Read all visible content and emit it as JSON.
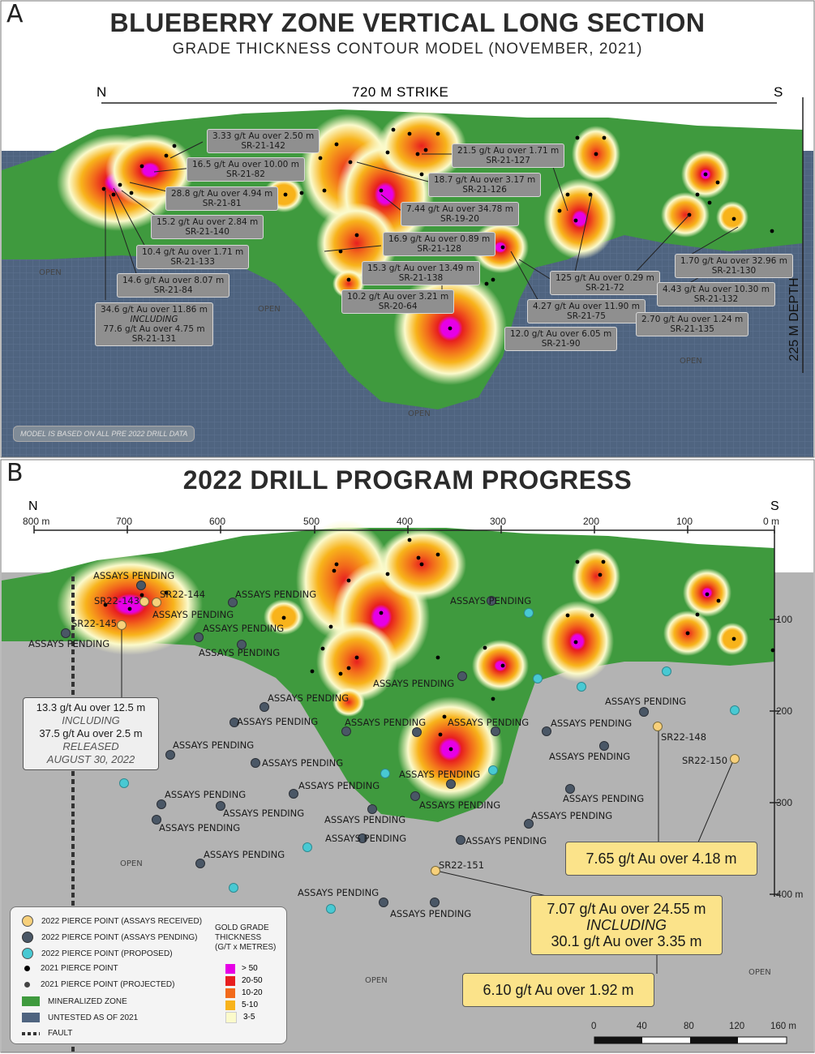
{
  "panelA": {
    "letter": "A",
    "title": "BLUEBERRY ZONE VERTICAL LONG SECTION",
    "subtitle": "GRADE THICKNESS CONTOUR MODEL (NOVEMBER, 2021)",
    "north": "N",
    "south": "S",
    "strike": "720 M STRIKE",
    "depth": "225 M DEPTH",
    "note": "MODEL IS BASED ON ALL PRE 2022 DRILL DATA",
    "open_label": "OPEN",
    "intercepts": [
      {
        "grade": "3.33 g/t Au over 2.50 m",
        "hole": "SR-21-142"
      },
      {
        "grade": "16.5 g/t Au over 10.00 m",
        "hole": "SR-21-82"
      },
      {
        "grade": "28.8 g/t Au over 4.94 m",
        "hole": "SR-21-81"
      },
      {
        "grade": "15.2 g/t Au over 2.84 m",
        "hole": "SR-21-140"
      },
      {
        "grade": "10.4 g/t Au over 1.71 m",
        "hole": "SR-21-133"
      },
      {
        "grade": "14.6 g/t Au over 8.07 m",
        "hole": "SR-21-84"
      },
      {
        "grade": "34.6 g/t Au over 11.86 m",
        "including": "INCLUDING",
        "grade2": "77.6 g/t Au over 4.75 m",
        "hole": "SR-21-131"
      },
      {
        "grade": "21.5 g/t Au over 1.71 m",
        "hole": "SR-21-127"
      },
      {
        "grade": "18.7 g/t Au over 3.17 m",
        "hole": "SR-21-126"
      },
      {
        "grade": "7.44 g/t Au over 34.78 m",
        "hole": "SR-19-20"
      },
      {
        "grade": "16.9 g/t Au over 0.89 m",
        "hole": "SR-21-128"
      },
      {
        "grade": "15.3 g/t Au over 13.49 m",
        "hole": "SR-21-138"
      },
      {
        "grade": "10.2 g/t Au over 3.21 m",
        "hole": "SR-20-64"
      },
      {
        "grade": "125 g/t Au over 0.29 m",
        "hole": "SR-21-72"
      },
      {
        "grade": "4.27 g/t Au over 11.90 m",
        "hole": "SR-21-75"
      },
      {
        "grade": "12.0 g/t Au over 6.05 m",
        "hole": "SR-21-90"
      },
      {
        "grade": "1.70 g/t Au over 32.96 m",
        "hole": "SR-21-130"
      },
      {
        "grade": "4.43 g/t Au over 10.30 m",
        "hole": "SR-21-132"
      },
      {
        "grade": "2.70 g/t Au over 1.24 m",
        "hole": "SR-21-135"
      }
    ]
  },
  "panelB": {
    "letter": "B",
    "title": "2022 DRILL PROGRAM PROGRESS",
    "north": "N",
    "south": "S",
    "x_ticks": [
      "800 m",
      "700",
      "600",
      "500",
      "400",
      "300",
      "200",
      "100",
      "0 m"
    ],
    "y_ticks": [
      "100",
      "200",
      "300",
      "400 m"
    ],
    "pending_text": "ASSAYS PENDING",
    "open_label": "OPEN",
    "holes": {
      "h143": "SR22-143",
      "h144": "SR22-144",
      "h145": "SR22-145",
      "h148": "SR22-148",
      "h150": "SR22-150",
      "h151": "SR22-151"
    },
    "released": {
      "line1": "13.3 g/t Au over 12.5 m",
      "including": "INCLUDING",
      "line2": "37.5 g/t Au over 2.5 m",
      "released": "RELEASED",
      "date": "AUGUST 30, 2022"
    },
    "results": {
      "r1": "7.65 g/t Au over 4.18 m",
      "r2a": "7.07 g/t Au over 24.55 m",
      "r2b": "INCLUDING",
      "r2c": "30.1 g/t Au over 3.35 m",
      "r3": "6.10 g/t Au over 1.92 m"
    },
    "legend": {
      "items": [
        "2022 PIERCE POINT (ASSAYS RECEIVED)",
        "2022 PIERCE POINT (ASSAYS PENDING)",
        "2022 PIERCE POINT (PROPOSED)",
        "2021 PIERCE POINT",
        "2021 PIERCE POINT (PROJECTED)",
        "MINERALIZED ZONE",
        "UNTESTED AS OF 2021",
        "FAULT"
      ],
      "grade_title1": "GOLD GRADE",
      "grade_title2": "THICKNESS",
      "grade_title3": "(G/T x METRES)",
      "grades": [
        "> 50",
        "20-50",
        "10-20",
        "5-10",
        "3-5"
      ]
    },
    "scale": [
      "0",
      "40",
      "80",
      "120",
      "160 m"
    ]
  },
  "colors": {
    "green": "#3f9a3e",
    "untested": "#4f6480",
    "grey": "#b3b3b3",
    "c50": "#e600e6",
    "c20": "#e81f1f",
    "c10": "#f26a1b",
    "c5": "#f8b31b",
    "c3": "#fbfacb",
    "received": "#f7d07b",
    "pending": "#4a5766",
    "proposed": "#48c9d3"
  }
}
